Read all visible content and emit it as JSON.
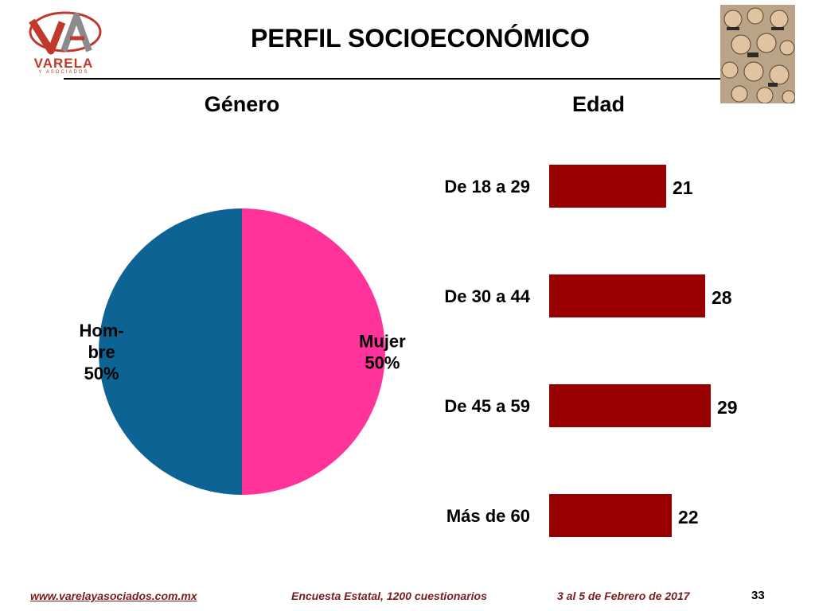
{
  "header": {
    "logo_text": "VARELA",
    "logo_subtext": "Y ASOCIADOS",
    "title": "PERFIL SOCIOECONÓMICO",
    "photo_icon": "people-collage-icon"
  },
  "colors": {
    "hombre": "#0d6494",
    "mujer": "#ff3399",
    "bars": "#990000",
    "footer": "#7a1c1c",
    "logo": "#c0392b"
  },
  "chart_data": [
    {
      "type": "pie",
      "title": "Género",
      "slices": [
        {
          "label": "Mujer",
          "label_lines": [
            "Mujer",
            "50%"
          ],
          "value": 50
        },
        {
          "label": "Hombre",
          "label_lines": [
            "Hom-",
            "bre",
            "50%"
          ],
          "value": 50
        }
      ]
    },
    {
      "type": "bar",
      "orientation": "horizontal",
      "title": "Edad",
      "categories": [
        "De 18 a 29",
        "De 30 a 44",
        "De 45 a 59",
        "Más de 60"
      ],
      "values": [
        21,
        28,
        29,
        22
      ],
      "xlim": [
        0,
        30
      ],
      "grid": false,
      "data_labels": true
    }
  ],
  "footer": {
    "url": "www.varelayasociados.com.mx",
    "survey": "Encuesta Estatal, 1200 cuestionarios",
    "date": "3 al 5 de Febrero de 2017",
    "page": "33"
  }
}
